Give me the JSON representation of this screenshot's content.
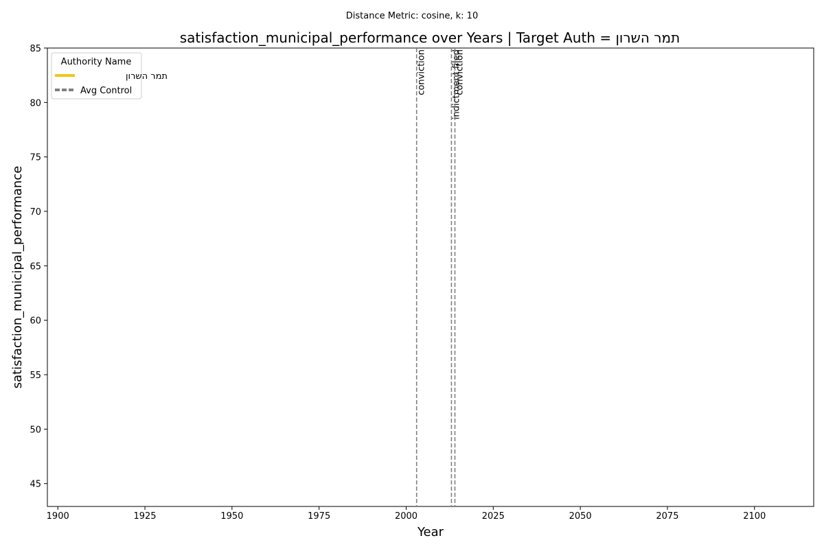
{
  "chart_data": {
    "type": "line",
    "suptitle": "Distance Metric: cosine, k: 10",
    "title": "satisfaction_municipal_performance over Years | Target Auth = תמר השרון",
    "xlabel": "Year",
    "ylabel": "satisfaction_municipal_performance",
    "xlim": [
      1897,
      2117
    ],
    "ylim": [
      42.9,
      85
    ],
    "xticks": [
      1900,
      1925,
      1950,
      1975,
      2000,
      2025,
      2050,
      2075,
      2100
    ],
    "yticks": [
      45,
      50,
      55,
      60,
      65,
      70,
      75,
      80,
      85
    ],
    "grid": false,
    "legend": {
      "title": "Authority Name",
      "position": "top-left",
      "entries": [
        {
          "label": "תמר השרון",
          "color": "#F5C518",
          "style": "solid"
        },
        {
          "label": "Avg Control",
          "color": "#808080",
          "style": "dashed"
        }
      ]
    },
    "series": [
      {
        "name": "תמר השרון",
        "x": [],
        "y": []
      },
      {
        "name": "Avg Control",
        "x": [],
        "y": []
      }
    ],
    "events": [
      {
        "x": 2003,
        "label": "conviction"
      },
      {
        "x": 2013,
        "label": "indictment filed"
      },
      {
        "x": 2014,
        "label": "conviction"
      }
    ],
    "event_line_color": "#808080"
  }
}
